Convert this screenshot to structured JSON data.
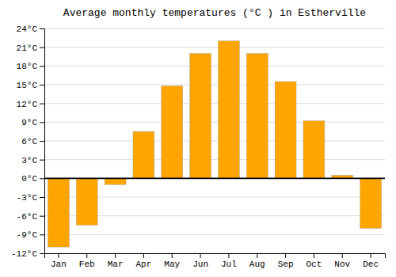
{
  "chart_data": {
    "type": "bar",
    "title": "Average monthly temperatures (°C ) in Estherville",
    "categories": [
      "Jan",
      "Feb",
      "Mar",
      "Apr",
      "May",
      "Jun",
      "Jul",
      "Aug",
      "Sep",
      "Oct",
      "Nov",
      "Dec"
    ],
    "values": [
      -11,
      -7.5,
      -1,
      7.5,
      14.8,
      20,
      22,
      20,
      15.5,
      9.2,
      0.5,
      -8
    ],
    "color": "#FFA500",
    "ylim": [
      -12,
      24
    ],
    "yticks": [
      {
        "value": -12,
        "label": "-12°C"
      },
      {
        "value": -9,
        "label": "-9°C"
      },
      {
        "value": -6,
        "label": "-6°C"
      },
      {
        "value": -3,
        "label": "-3°C"
      },
      {
        "value": 0,
        "label": "0°C"
      },
      {
        "value": 3,
        "label": "3°C"
      },
      {
        "value": 6,
        "label": "6°C"
      },
      {
        "value": 9,
        "label": "9°C"
      },
      {
        "value": 12,
        "label": "12°C"
      },
      {
        "value": 15,
        "label": "15°C"
      },
      {
        "value": 18,
        "label": "18°C"
      },
      {
        "value": 21,
        "label": "21°C"
      },
      {
        "value": 24,
        "label": "24°C"
      }
    ],
    "grid": true
  }
}
